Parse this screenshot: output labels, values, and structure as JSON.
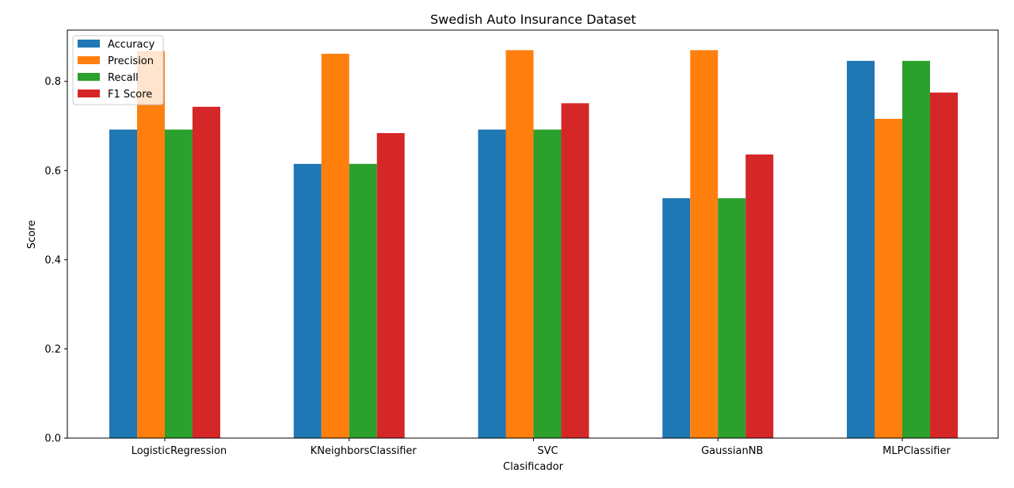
{
  "chart_data": {
    "type": "bar",
    "title": "Swedish Auto Insurance Dataset",
    "xlabel": "Clasificador",
    "ylabel": "Score",
    "ylim": [
      0,
      0.915
    ],
    "yticks": [
      0.0,
      0.2,
      0.4,
      0.6,
      0.8
    ],
    "ytick_labels": [
      "0.0",
      "0.2",
      "0.4",
      "0.6",
      "0.8"
    ],
    "grid": false,
    "legend_position": "top-left",
    "categories": [
      "LogisticRegression",
      "KNeighborsClassifier",
      "SVC",
      "GaussianNB",
      "MLPClassifier"
    ],
    "series": [
      {
        "name": "Accuracy",
        "color": "#1f77b4",
        "values": [
          0.692,
          0.615,
          0.692,
          0.538,
          0.846
        ]
      },
      {
        "name": "Precision",
        "color": "#ff7f0e",
        "values": [
          0.868,
          0.862,
          0.87,
          0.87,
          0.716
        ]
      },
      {
        "name": "Recall",
        "color": "#2ca02c",
        "values": [
          0.692,
          0.615,
          0.692,
          0.538,
          0.846
        ]
      },
      {
        "name": "F1 Score",
        "color": "#d62728",
        "values": [
          0.743,
          0.684,
          0.751,
          0.636,
          0.775
        ]
      }
    ]
  }
}
